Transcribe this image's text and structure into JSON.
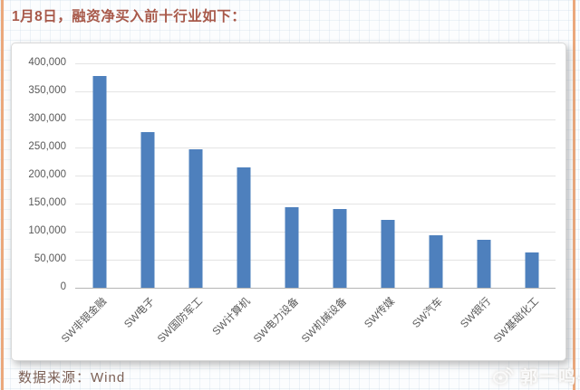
{
  "page": {
    "title": "1月8日，融资净买入前十行业如下：",
    "source_label": "数据来源：Wind",
    "watermark": {
      "icon": "weibo-icon",
      "text": "郭一鸣-"
    }
  },
  "colors": {
    "accent_border": "#eba87c",
    "title_text": "#a8594a",
    "source_text": "#7d6156",
    "bar_fill": "#4e80bd",
    "gridline": "#e4e4e4",
    "axis_line": "#b5b5b5",
    "tick_text": "#595959",
    "panel_background": "#ffffff"
  },
  "chart_data": {
    "type": "bar",
    "title": "",
    "xlabel": "",
    "ylabel": "",
    "categories": [
      "SW非银金融",
      "SW电子",
      "SW国防军工",
      "SW计算机",
      "SW电力设备",
      "SW机械设备",
      "SW传媒",
      "SW汽车",
      "SW银行",
      "SW基础化工"
    ],
    "values": [
      378000,
      278000,
      247000,
      215000,
      143000,
      141000,
      121000,
      93000,
      85000,
      63000
    ],
    "ylim": [
      0,
      400000
    ],
    "ytick_values": [
      0,
      50000,
      100000,
      150000,
      200000,
      250000,
      300000,
      350000,
      400000
    ],
    "ytick_labels": [
      "0",
      "50,000",
      "100,000",
      "150,000",
      "200,000",
      "250,000",
      "300,000",
      "350,000",
      "400,000"
    ],
    "grid": "horizontal",
    "legend": "none"
  }
}
